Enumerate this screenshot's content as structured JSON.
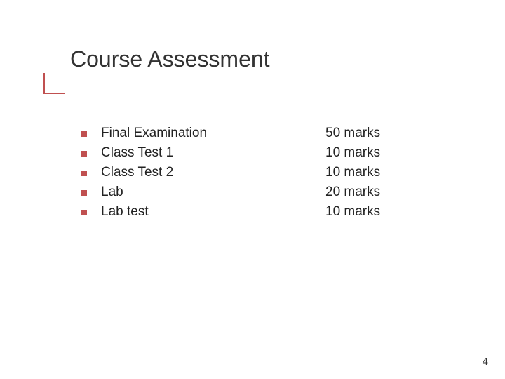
{
  "slide": {
    "title": "Course Assessment",
    "accent_color": "#c05050",
    "bullet_color": "#c05050",
    "page_number": "4",
    "items": [
      {
        "label": "Final Examination",
        "marks": "50 marks"
      },
      {
        "label": "Class Test 1",
        "marks": "10 marks"
      },
      {
        "label": "Class Test 2",
        "marks": "10 marks"
      },
      {
        "label": "Lab",
        "marks": "20 marks"
      },
      {
        "label": "Lab test",
        "marks": "10 marks"
      }
    ]
  },
  "style": {
    "background_color": "#ffffff",
    "title_fontsize": 32,
    "body_fontsize": 19,
    "title_color": "#333333",
    "text_color": "#222222"
  }
}
